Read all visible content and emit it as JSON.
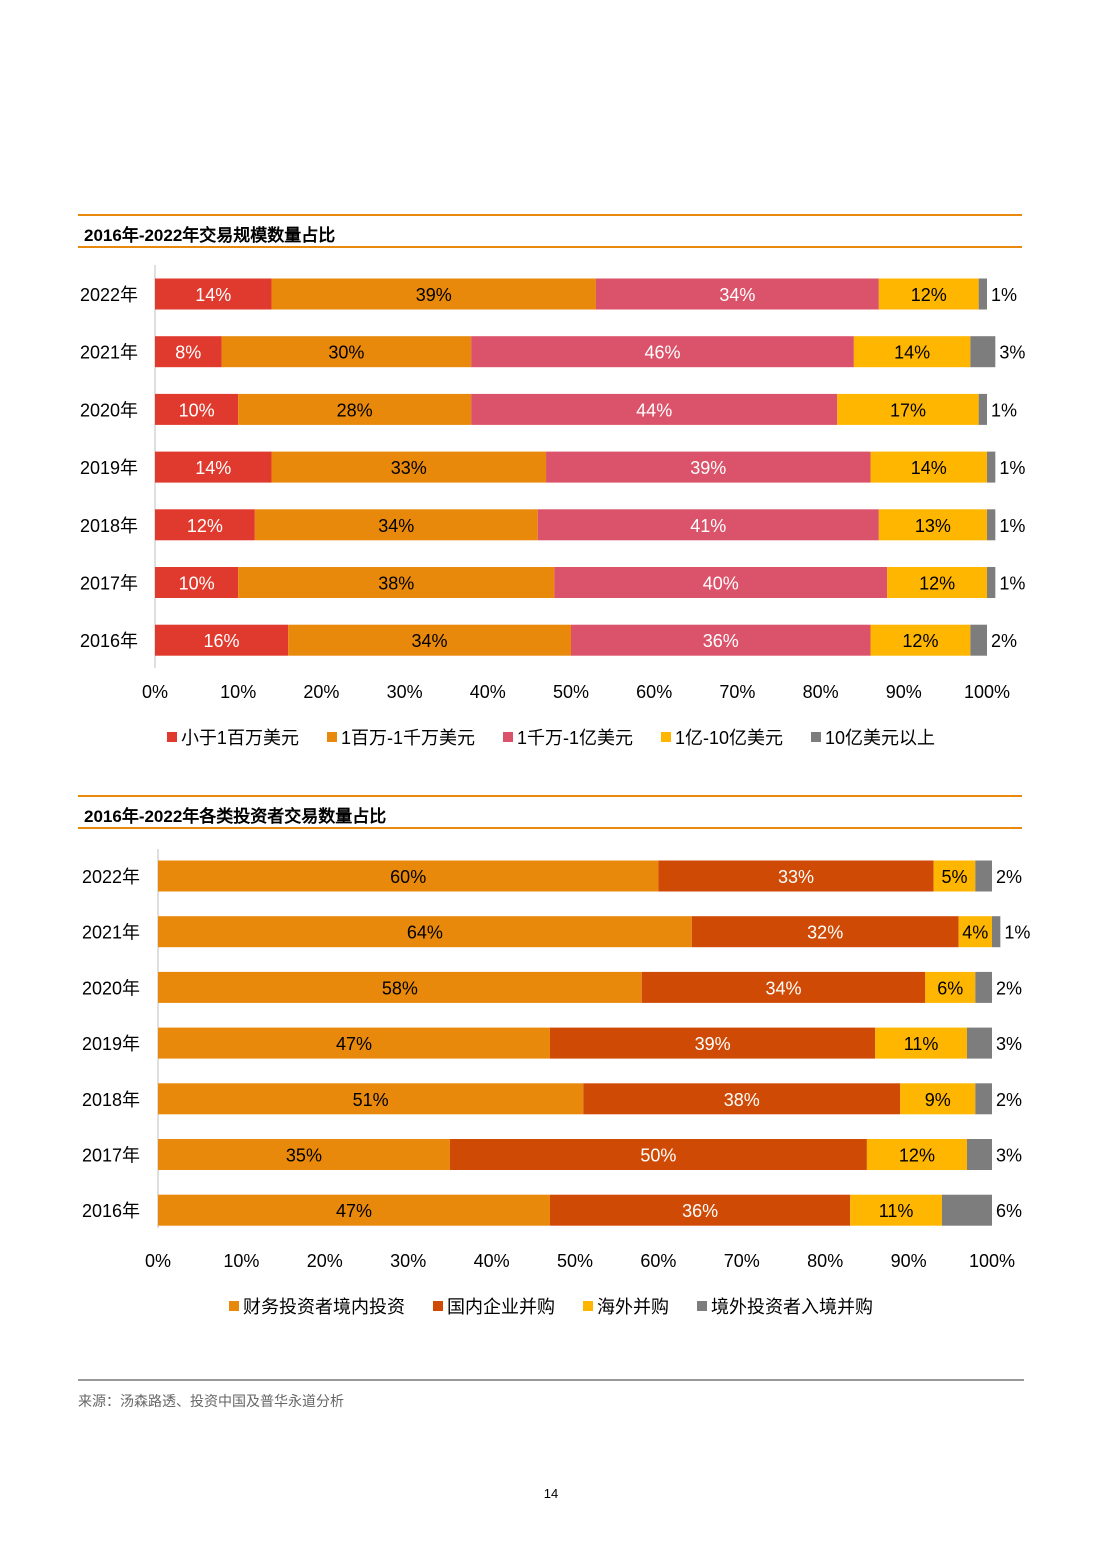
{
  "section1_title": "2016年-2022年交易规模数量占比",
  "section2_title": "2016年-2022年各类投资者交易数量占比",
  "footer": {
    "source": "来源：汤森路透、投资中国及普华永道分析",
    "page_number": "14"
  },
  "chart_data": [
    {
      "type": "bar",
      "orientation": "horizontal",
      "stacked": true,
      "title": "2016年-2022年交易规模数量占比",
      "categories": [
        "2022年",
        "2021年",
        "2020年",
        "2019年",
        "2018年",
        "2017年",
        "2016年"
      ],
      "series": [
        {
          "name": "小于1百万美元",
          "color": "#e03a2e",
          "values": [
            14,
            8,
            10,
            14,
            12,
            10,
            16
          ]
        },
        {
          "name": "1百万-1千万美元",
          "color": "#e8890c",
          "values": [
            39,
            30,
            28,
            33,
            34,
            38,
            34
          ]
        },
        {
          "name": "1千万-1亿美元",
          "color": "#db536a",
          "values": [
            34,
            46,
            44,
            39,
            41,
            40,
            36
          ]
        },
        {
          "name": "1亿-10亿美元",
          "color": "#ffb600",
          "values": [
            12,
            14,
            17,
            14,
            13,
            12,
            12
          ]
        },
        {
          "name": "10亿美元以上",
          "color": "#7d7d7d",
          "values": [
            1,
            3,
            1,
            1,
            1,
            1,
            2
          ]
        }
      ],
      "xlim": [
        0,
        100
      ],
      "x_ticks": [
        "0%",
        "10%",
        "20%",
        "30%",
        "40%",
        "50%",
        "60%",
        "70%",
        "80%",
        "90%",
        "100%"
      ],
      "legend": "bottom",
      "grid": false
    },
    {
      "type": "bar",
      "orientation": "horizontal",
      "stacked": true,
      "title": "2016年-2022年各类投资者交易数量占比",
      "categories": [
        "2022年",
        "2021年",
        "2020年",
        "2019年",
        "2018年",
        "2017年",
        "2016年"
      ],
      "series": [
        {
          "name": "财务投资者境内投资",
          "color": "#e8890c",
          "values": [
            60,
            64,
            58,
            47,
            51,
            35,
            47
          ]
        },
        {
          "name": "国内企业并购",
          "color": "#cf4a05",
          "values": [
            33,
            32,
            34,
            39,
            38,
            50,
            36
          ]
        },
        {
          "name": "海外并购",
          "color": "#ffb600",
          "values": [
            5,
            4,
            6,
            11,
            9,
            12,
            11
          ]
        },
        {
          "name": "境外投资者入境并购",
          "color": "#7d7d7d",
          "values": [
            2,
            1,
            2,
            3,
            2,
            3,
            6
          ]
        }
      ],
      "xlim": [
        0,
        100
      ],
      "x_ticks": [
        "0%",
        "10%",
        "20%",
        "30%",
        "40%",
        "50%",
        "60%",
        "70%",
        "80%",
        "90%",
        "100%"
      ],
      "legend": "bottom",
      "grid": false
    }
  ]
}
